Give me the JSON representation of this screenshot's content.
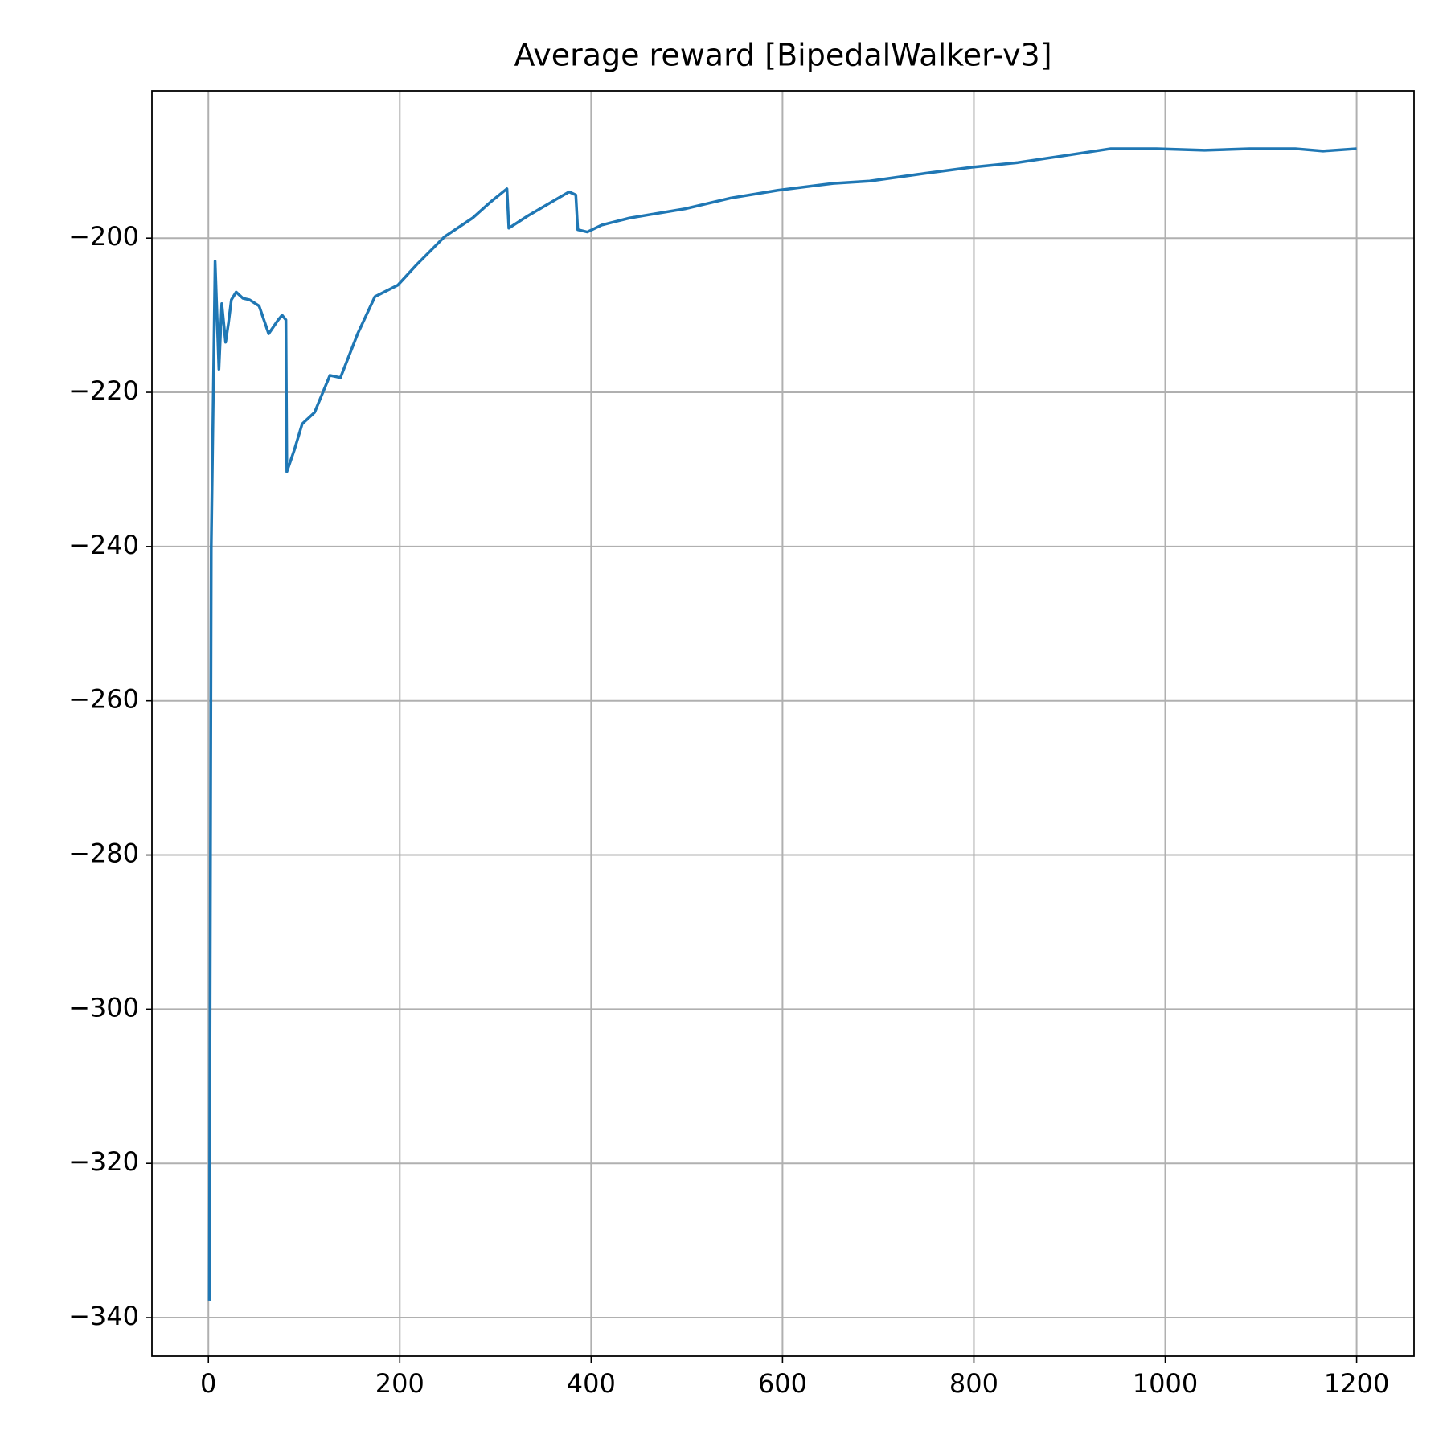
{
  "chart_data": {
    "type": "line",
    "title": "Average reward [BipedalWalker-v3]",
    "x": [
      1,
      3,
      7,
      11,
      14,
      18,
      21,
      24,
      29,
      36,
      43,
      53,
      63,
      73,
      77,
      81,
      82,
      90,
      98,
      111,
      127,
      138,
      156,
      174,
      198,
      218,
      247,
      276,
      295,
      312,
      314,
      334,
      363,
      377,
      384,
      386,
      396,
      411,
      440,
      459,
      498,
      546,
      595,
      653,
      691,
      749,
      798,
      846,
      895,
      943,
      991,
      1041,
      1088,
      1136,
      1165,
      1200
    ],
    "values": [
      -337.8,
      -240,
      -203,
      -217,
      -208.5,
      -213.5,
      -211,
      -208,
      -207,
      -207.8,
      -208,
      -208.8,
      -212.4,
      -210.6,
      -210,
      -210.6,
      -230.3,
      -227.4,
      -224.1,
      -222.6,
      -217.8,
      -218.1,
      -212.4,
      -207.6,
      -206.1,
      -203.4,
      -199.8,
      -197.4,
      -195.3,
      -193.6,
      -198.7,
      -197.1,
      -195,
      -194,
      -194.4,
      -198.9,
      -199.2,
      -198.3,
      -197.4,
      -197,
      -196.2,
      -194.8,
      -193.8,
      -192.9,
      -192.6,
      -191.6,
      -190.8,
      -190.2,
      -189.3,
      -188.4,
      -188.4,
      -188.6,
      -188.4,
      -188.4,
      -188.7,
      -188.4
    ],
    "color": "#1f77b4",
    "xlim": [
      -59,
      1260
    ],
    "xticks": [
      0,
      200,
      400,
      600,
      800,
      1000,
      1200
    ],
    "ylim": [
      -345,
      -180.9
    ],
    "yticks": [
      {
        "value": -340,
        "label": "−340"
      },
      {
        "value": -320,
        "label": "−320"
      },
      {
        "value": -300,
        "label": "−300"
      },
      {
        "value": -280,
        "label": "−280"
      },
      {
        "value": -260,
        "label": "−260"
      },
      {
        "value": -240,
        "label": "−240"
      },
      {
        "value": -220,
        "label": "−220"
      },
      {
        "value": -200,
        "label": "−200"
      }
    ],
    "grid": true
  }
}
